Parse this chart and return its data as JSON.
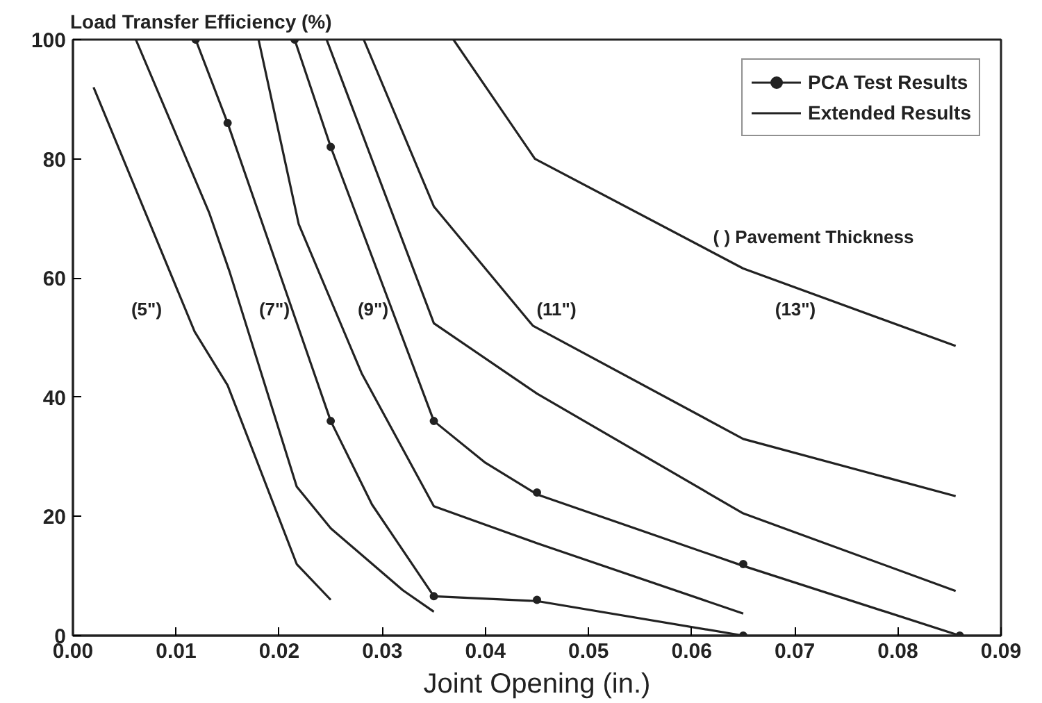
{
  "chart_data": {
    "type": "line",
    "ylabel": "Load Transfer Efficiency (%)",
    "xlabel": "Joint Opening (in.)",
    "xlim": [
      0,
      0.09
    ],
    "ylim": [
      0,
      100
    ],
    "xticks": [
      {
        "value": 0,
        "label": "0.00"
      },
      {
        "value": 0.01,
        "label": "0.01"
      },
      {
        "value": 0.02,
        "label": "0.02"
      },
      {
        "value": 0.03,
        "label": "0.03"
      },
      {
        "value": 0.04,
        "label": "0.04"
      },
      {
        "value": 0.05,
        "label": "0.05"
      },
      {
        "value": 0.06,
        "label": "0.06"
      },
      {
        "value": 0.07,
        "label": "0.07"
      },
      {
        "value": 0.08,
        "label": "0.08"
      },
      {
        "value": 0.09,
        "label": "0.09"
      }
    ],
    "yticks": [
      0,
      20,
      40,
      60,
      80,
      100
    ],
    "grid": false,
    "legend": "top right",
    "marker": "none",
    "line_style": "solid",
    "series": [
      {
        "name": "PCA Test Results",
        "type": "scatter",
        "marker": "circle",
        "color": "#222222",
        "x": [
          0.0119,
          0.015,
          0.0215,
          0.025,
          0.025,
          0.035,
          0.035,
          0.045,
          0.045,
          0.065,
          0.065,
          0.086
        ],
        "values": [
          100,
          86,
          100,
          82,
          36,
          36,
          6.6,
          24,
          6,
          12,
          0,
          0
        ]
      },
      {
        "name": "Extended Results",
        "color": "#222222",
        "x": [
          0.002,
          0.0118,
          0.015,
          0.0217,
          0.025
        ],
        "values": [
          92,
          51,
          42,
          12,
          6
        ]
      },
      {
        "color": "#222222",
        "x": [
          0.0061,
          0.0132,
          0.0152,
          0.0217,
          0.025,
          0.032,
          0.035
        ],
        "values": [
          100,
          71,
          61,
          25,
          18,
          7.6,
          4
        ]
      },
      {
        "color": "#222222",
        "x": [
          0.0119,
          0.015,
          0.0199,
          0.025,
          0.029,
          0.035,
          0.045,
          0.065
        ],
        "values": [
          100,
          86,
          61.5,
          36,
          22,
          6.6,
          5.8,
          0
        ]
      },
      {
        "color": "#222222",
        "x": [
          0.018,
          0.0219,
          0.028,
          0.035,
          0.045,
          0.065
        ],
        "values": [
          100,
          69,
          44,
          21.7,
          15.5,
          3.7
        ]
      },
      {
        "color": "#222222",
        "x": [
          0.0215,
          0.025,
          0.035,
          0.04,
          0.045,
          0.065,
          0.086
        ],
        "values": [
          100,
          82,
          36,
          29,
          23.7,
          11.7,
          0
        ]
      },
      {
        "color": "#222222",
        "x": [
          0.0246,
          0.035,
          0.045,
          0.065,
          0.0856
        ],
        "values": [
          100,
          52.4,
          40.6,
          20.5,
          7.5
        ]
      },
      {
        "color": "#222222",
        "x": [
          0.0282,
          0.035,
          0.0446,
          0.065,
          0.0856
        ],
        "values": [
          100,
          72,
          52,
          33,
          23.4
        ]
      },
      {
        "color": "#222222",
        "x": [
          0.0369,
          0.0448,
          0.065,
          0.0856
        ],
        "values": [
          100,
          80,
          61.6,
          48.6
        ]
      }
    ],
    "annotations": [
      "(5\")",
      "(7\")",
      "(9\")",
      "(11\")",
      "(13\")",
      "( ) Pavement Thickness"
    ]
  }
}
